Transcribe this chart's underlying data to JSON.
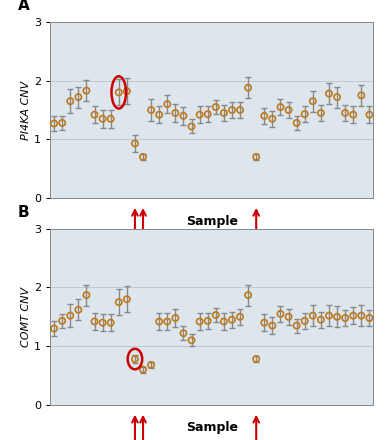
{
  "panel_A": {
    "ylabel": "PI4KA CNV",
    "xlabel": "Sample",
    "ylim": [
      0,
      3
    ],
    "yticks": [
      0,
      1,
      2,
      3
    ],
    "values": [
      1.27,
      1.28,
      1.65,
      1.72,
      1.83,
      1.42,
      1.35,
      1.35,
      1.8,
      1.82,
      0.93,
      0.7,
      1.5,
      1.42,
      1.6,
      1.45,
      1.4,
      1.22,
      1.42,
      1.43,
      1.55,
      1.45,
      1.5,
      1.5,
      1.88,
      0.7,
      1.4,
      1.35,
      1.55,
      1.5,
      1.28,
      1.43,
      1.65,
      1.45,
      1.78,
      1.72,
      1.45,
      1.42,
      1.75,
      1.42
    ],
    "errors": [
      0.12,
      0.12,
      0.2,
      0.18,
      0.18,
      0.15,
      0.15,
      0.15,
      0.22,
      0.22,
      0.15,
      0.05,
      0.18,
      0.15,
      0.15,
      0.15,
      0.15,
      0.12,
      0.14,
      0.14,
      0.12,
      0.14,
      0.14,
      0.14,
      0.18,
      0.05,
      0.14,
      0.14,
      0.14,
      0.14,
      0.12,
      0.14,
      0.18,
      0.14,
      0.18,
      0.18,
      0.14,
      0.14,
      0.18,
      0.14
    ],
    "circle_indices": [
      8
    ],
    "circle_widths": [
      1.8
    ],
    "circle_heights": [
      0.55
    ],
    "arrow_indices": [
      10,
      11,
      25
    ],
    "label": "A"
  },
  "panel_B": {
    "ylabel": "COMT CNV",
    "xlabel": "Sample",
    "ylim": [
      0,
      3
    ],
    "yticks": [
      0,
      1,
      2,
      3
    ],
    "values": [
      1.3,
      1.43,
      1.52,
      1.62,
      1.87,
      1.42,
      1.4,
      1.4,
      1.75,
      1.8,
      0.78,
      0.6,
      0.68,
      1.42,
      1.42,
      1.48,
      1.22,
      1.1,
      1.42,
      1.43,
      1.53,
      1.42,
      1.45,
      1.5,
      1.87,
      0.78,
      1.4,
      1.35,
      1.55,
      1.5,
      1.35,
      1.43,
      1.52,
      1.45,
      1.52,
      1.5,
      1.48,
      1.52,
      1.52,
      1.48
    ],
    "errors": [
      0.12,
      0.12,
      0.2,
      0.18,
      0.18,
      0.15,
      0.15,
      0.15,
      0.22,
      0.22,
      0.07,
      0.05,
      0.05,
      0.15,
      0.15,
      0.15,
      0.12,
      0.1,
      0.14,
      0.14,
      0.12,
      0.14,
      0.14,
      0.14,
      0.18,
      0.05,
      0.14,
      0.14,
      0.14,
      0.14,
      0.12,
      0.14,
      0.18,
      0.14,
      0.18,
      0.18,
      0.14,
      0.14,
      0.18,
      0.14
    ],
    "circle_indices": [
      10
    ],
    "circle_widths": [
      1.8
    ],
    "circle_heights": [
      0.35
    ],
    "arrow_indices": [
      10,
      11,
      25
    ],
    "label": "B"
  },
  "marker_color": "#F5A623",
  "marker_edge_color": "#C07818",
  "error_color": "#888888",
  "circle_color": "#CC0000",
  "arrow_color": "#CC0000",
  "bg_color": "#DDE6ED",
  "grid_color": "#C0C8D0",
  "label_fontsize": 8,
  "axis_label_fontsize": 8,
  "marker_size": 4.5
}
